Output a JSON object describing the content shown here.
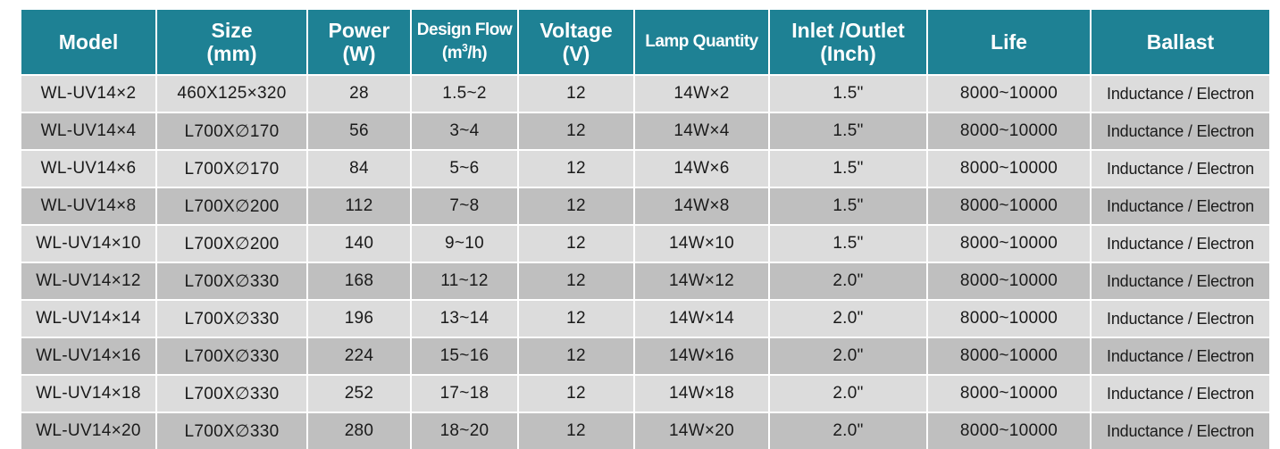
{
  "headers": {
    "model": "Model",
    "size_l1": "Size",
    "size_l2": "(mm)",
    "power_l1": "Power",
    "power_l2": "(W)",
    "flow_l1": "Design Flow",
    "flow_l2_pre": "(m",
    "flow_l2_sup": "3",
    "flow_l2_post": "/h)",
    "voltage_l1": "Voltage",
    "voltage_l2": "(V)",
    "lamp": "Lamp Quantity",
    "inlet_l1": "Inlet /Outlet",
    "inlet_l2": "(Inch)",
    "life": "Life",
    "ballast": "Ballast"
  },
  "rows": [
    {
      "model": "WL-UV14×2",
      "size": "460X125×320",
      "power": "28",
      "flow": "1.5~2",
      "voltage": "12",
      "lamp": "14W×2",
      "inlet": "1.5\"",
      "life": "8000~10000",
      "ballast": "Inductance / Electron"
    },
    {
      "model": "WL-UV14×4",
      "size": "L700X∅170",
      "power": "56",
      "flow": "3~4",
      "voltage": "12",
      "lamp": "14W×4",
      "inlet": "1.5\"",
      "life": "8000~10000",
      "ballast": "Inductance / Electron"
    },
    {
      "model": "WL-UV14×6",
      "size": "L700X∅170",
      "power": "84",
      "flow": "5~6",
      "voltage": "12",
      "lamp": "14W×6",
      "inlet": "1.5\"",
      "life": "8000~10000",
      "ballast": "Inductance / Electron"
    },
    {
      "model": "WL-UV14×8",
      "size": "L700X∅200",
      "power": "112",
      "flow": "7~8",
      "voltage": "12",
      "lamp": "14W×8",
      "inlet": "1.5\"",
      "life": "8000~10000",
      "ballast": "Inductance / Electron"
    },
    {
      "model": "WL-UV14×10",
      "size": "L700X∅200",
      "power": "140",
      "flow": "9~10",
      "voltage": "12",
      "lamp": "14W×10",
      "inlet": "1.5\"",
      "life": "8000~10000",
      "ballast": "Inductance / Electron"
    },
    {
      "model": "WL-UV14×12",
      "size": "L700X∅330",
      "power": "168",
      "flow": "11~12",
      "voltage": "12",
      "lamp": "14W×12",
      "inlet": "2.0\"",
      "life": "8000~10000",
      "ballast": "Inductance / Electron"
    },
    {
      "model": "WL-UV14×14",
      "size": "L700X∅330",
      "power": "196",
      "flow": "13~14",
      "voltage": "12",
      "lamp": "14W×14",
      "inlet": "2.0\"",
      "life": "8000~10000",
      "ballast": "Inductance / Electron"
    },
    {
      "model": "WL-UV14×16",
      "size": "L700X∅330",
      "power": "224",
      "flow": "15~16",
      "voltage": "12",
      "lamp": "14W×16",
      "inlet": "2.0\"",
      "life": "8000~10000",
      "ballast": "Inductance / Electron"
    },
    {
      "model": "WL-UV14×18",
      "size": "L700X∅330",
      "power": "252",
      "flow": "17~18",
      "voltage": "12",
      "lamp": "14W×18",
      "inlet": "2.0\"",
      "life": "8000~10000",
      "ballast": "Inductance / Electron"
    },
    {
      "model": "WL-UV14×20",
      "size": "L700X∅330",
      "power": "280",
      "flow": "18~20",
      "voltage": "12",
      "lamp": "14W×20",
      "inlet": "2.0\"",
      "life": "8000~10000",
      "ballast": "Inductance / Electron"
    }
  ]
}
